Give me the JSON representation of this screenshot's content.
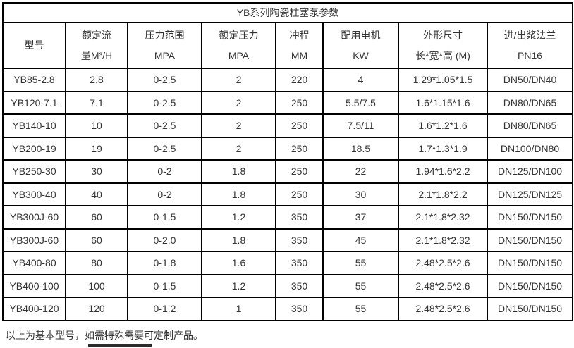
{
  "page": {
    "title": "YB系列陶瓷柱塞泵参数",
    "footnote": "以上为基本型号，如需特殊需要可定制产品。"
  },
  "colors": {
    "border": "#000000",
    "text": "#333333",
    "background": "#ffffff"
  },
  "table": {
    "headers": [
      {
        "line1": "型号",
        "line2": ""
      },
      {
        "line1": "额定流",
        "line2": "量M³/H"
      },
      {
        "line1": "压力范围",
        "line2": "MPA"
      },
      {
        "line1": "额定压力",
        "line2": "MPA"
      },
      {
        "line1": "冲程",
        "line2": "MM"
      },
      {
        "line1": "配用电机",
        "line2": "KW"
      },
      {
        "line1": "外形尺寸",
        "line2": "长*宽*高 (M)"
      },
      {
        "line1": "进/出浆法兰",
        "line2": "PN16"
      }
    ],
    "rows": [
      [
        "YB85-2.8",
        "2.8",
        "0-2.5",
        "2",
        "220",
        "4",
        "1.29*1.05*1.5",
        "DN50/DN40"
      ],
      [
        "YB120-7.1",
        "7.1",
        "0-2.5",
        "2",
        "250",
        "5.5/7.5",
        "1.6*1.15*1.6",
        "DN80/DN65"
      ],
      [
        "YB140-10",
        "10",
        "0-2.5",
        "2",
        "250",
        "7.5/11",
        "1.6*1.2*1.6",
        "DN80/DN65"
      ],
      [
        "YB200-19",
        "19",
        "0-2.5",
        "2",
        "250",
        "18.5",
        "1.7*1.3*1.9",
        "DN100/DN80"
      ],
      [
        "YB250-30",
        "30",
        "0-2",
        "1.8",
        "250",
        "22",
        "1.94*1.6*2.2",
        "DN125/DN100"
      ],
      [
        "YB300-40",
        "40",
        "0-2",
        "1.8",
        "250",
        "30",
        "2.1*1.8*2.2",
        "DN125/DN125"
      ],
      [
        "YB300J-60",
        "60",
        "0-1.5",
        "1.2",
        "350",
        "37",
        "2.1*1.8*2.32",
        "DN150/DN150"
      ],
      [
        "YB300J-60",
        "60",
        "0-2.0",
        "1.8",
        "350",
        "45",
        "2.1*1.8*2.32",
        "DN150/DN150"
      ],
      [
        "YB400-80",
        "80",
        "0-1.8",
        "1.6",
        "350",
        "55",
        "2.48*2.5*2.6",
        "DN150/DN150"
      ],
      [
        "YB400-100",
        "100",
        "0-1.5",
        "1.2",
        "350",
        "55",
        "2.48*2.5*2.6",
        "DN150/DN150"
      ],
      [
        "YB400-120",
        "120",
        "0-1.2",
        "1",
        "350",
        "55",
        "2.48*2.5*2.6",
        "DN150/DN150"
      ]
    ]
  }
}
